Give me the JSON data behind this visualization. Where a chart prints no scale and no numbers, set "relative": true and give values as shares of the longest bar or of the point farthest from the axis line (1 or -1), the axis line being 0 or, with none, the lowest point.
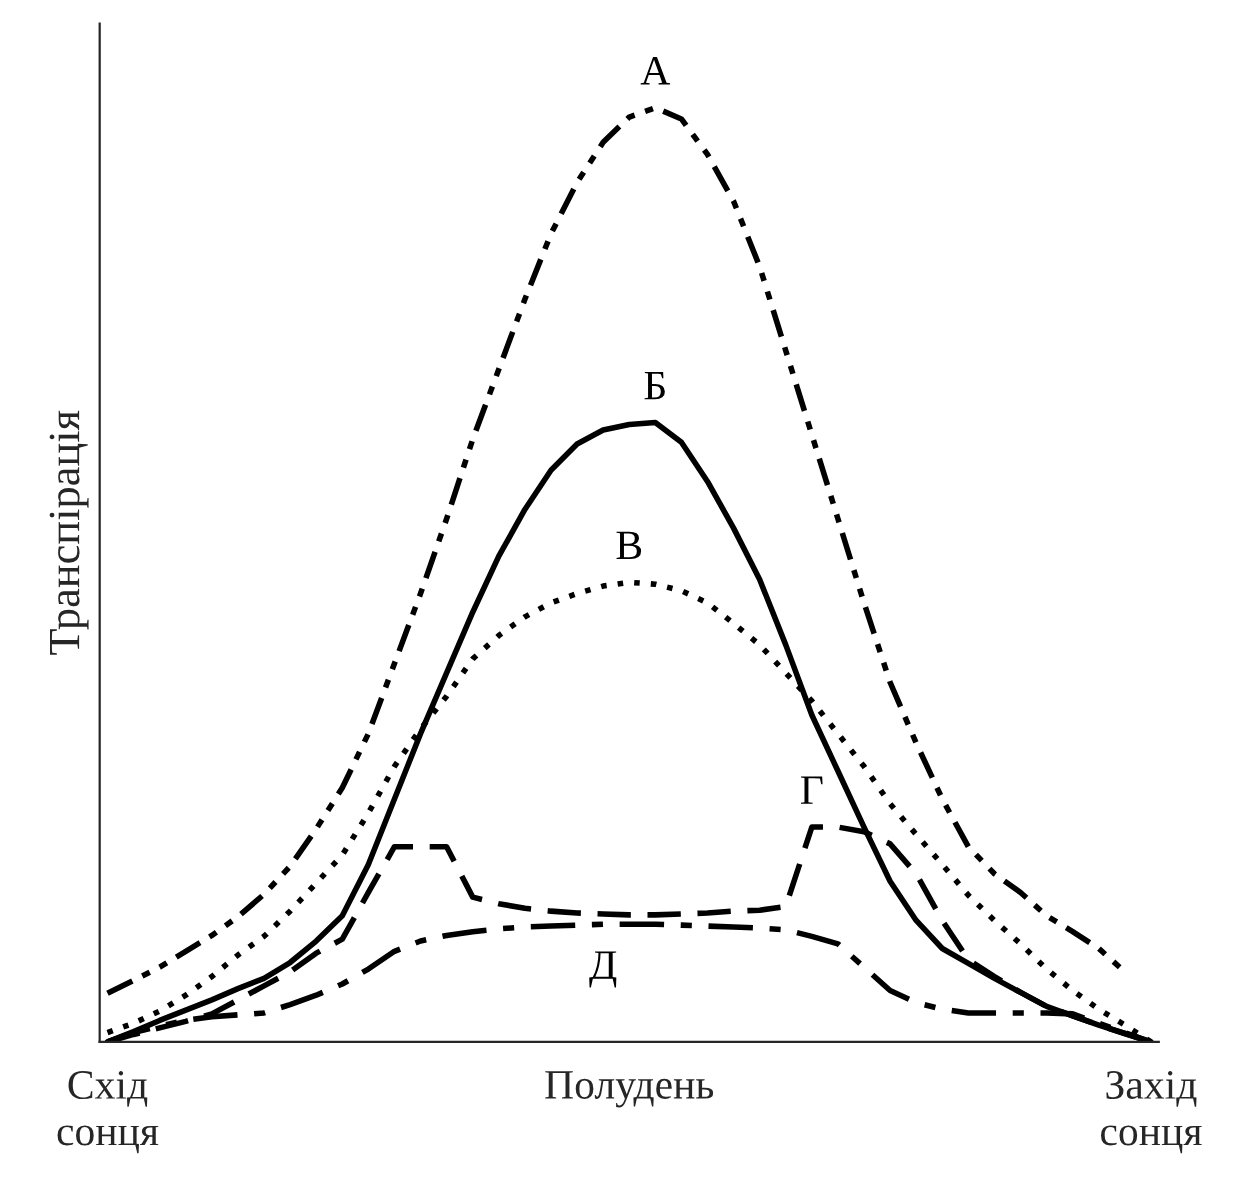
{
  "chart_data": {
    "type": "line",
    "relative": true,
    "ylabel": "Транспірація",
    "categories": [
      "Схід\nсонця",
      null,
      null,
      null,
      null,
      null,
      null,
      null,
      null,
      null,
      null,
      null,
      null,
      null,
      null,
      null,
      null,
      null,
      null,
      null,
      "Полудень",
      null,
      null,
      null,
      null,
      null,
      null,
      null,
      null,
      null,
      null,
      null,
      null,
      null,
      null,
      null,
      null,
      null,
      null,
      null,
      "Захід\nсонця"
    ],
    "grid": false,
    "legend": false,
    "marker": "none",
    "series": [
      {
        "name": "А",
        "color": "#000000",
        "line_style": "dashdotdot",
        "values": [
          0.052,
          0.066,
          0.08,
          0.097,
          0.114,
          0.134,
          0.158,
          0.188,
          0.228,
          0.272,
          0.33,
          0.405,
          0.48,
          0.56,
          0.645,
          0.72,
          0.795,
          0.865,
          0.92,
          0.963,
          0.99,
          1.0,
          0.988,
          0.95,
          0.9,
          0.83,
          0.74,
          0.65,
          0.56,
          0.47,
          0.385,
          0.32,
          0.26,
          0.209,
          0.18,
          0.16,
          0.135,
          0.118,
          0.1,
          0.075,
          null
        ]
      },
      {
        "name": "Б",
        "color": "#000000",
        "line_style": "solid",
        "values": [
          0,
          0.011,
          0.023,
          0.034,
          0.045,
          0.057,
          0.068,
          0.085,
          0.108,
          0.135,
          0.19,
          0.26,
          0.33,
          0.395,
          0.46,
          0.52,
          0.57,
          0.612,
          0.64,
          0.655,
          0.661,
          0.663,
          0.642,
          0.6,
          0.55,
          0.495,
          0.425,
          0.35,
          0.29,
          0.23,
          0.172,
          0.13,
          0.1,
          0.084,
          0.068,
          0.053,
          0.038,
          0.028,
          0.018,
          0.009,
          0
        ]
      },
      {
        "name": "В",
        "color": "#000000",
        "line_style": "dotted",
        "values": [
          0.01,
          0.02,
          0.033,
          0.05,
          0.07,
          0.093,
          0.113,
          0.14,
          0.17,
          0.2,
          0.245,
          0.295,
          0.335,
          0.37,
          0.41,
          0.435,
          0.455,
          0.47,
          0.48,
          0.488,
          0.492,
          0.49,
          0.483,
          0.47,
          0.448,
          0.425,
          0.395,
          0.365,
          0.33,
          0.295,
          0.255,
          0.222,
          0.19,
          0.157,
          0.13,
          0.105,
          0.078,
          0.055,
          0.035,
          0.018,
          0
        ]
      },
      {
        "name": "Г",
        "color": "#000000",
        "line_style": "dashed",
        "values": [
          0,
          0.008,
          0.015,
          0.022,
          0.03,
          0.045,
          0.06,
          0.075,
          0.095,
          0.11,
          0.16,
          0.209,
          0.209,
          0.209,
          0.155,
          0.148,
          0.143,
          0.14,
          0.138,
          0.137,
          0.136,
          0.136,
          0.137,
          0.138,
          0.14,
          0.141,
          0.145,
          0.23,
          0.23,
          0.225,
          0.212,
          0.18,
          0.13,
          0.088,
          0.07,
          0.053,
          0.038,
          0.028,
          0.018,
          0.009,
          0
        ]
      },
      {
        "name": "Д",
        "color": "#000000",
        "line_style": "dashdot",
        "values": [
          0,
          0.01,
          0.017,
          0.023,
          0.027,
          0.029,
          0.031,
          0.04,
          0.05,
          0.062,
          0.078,
          0.097,
          0.108,
          0.114,
          0.118,
          0.121,
          0.123,
          0.124,
          0.125,
          0.126,
          0.126,
          0.126,
          0.125,
          0.124,
          0.123,
          0.122,
          0.12,
          0.113,
          0.105,
          0.08,
          0.055,
          0.042,
          0.035,
          0.031,
          0.031,
          0.031,
          0.031,
          0.03,
          0.02,
          0.01,
          0
        ]
      }
    ]
  }
}
